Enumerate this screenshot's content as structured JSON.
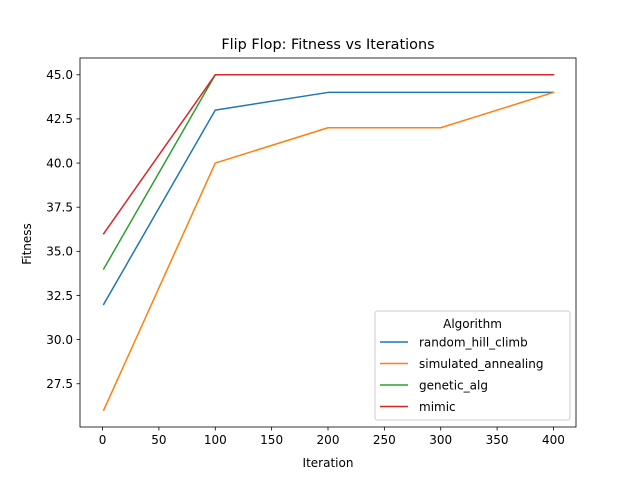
{
  "chart_data": {
    "type": "line",
    "title": "Flip Flop: Fitness vs Iterations",
    "xlabel": "Iteration",
    "ylabel": "Fitness",
    "xlim": [
      -20,
      420
    ],
    "ylim": [
      25.05,
      45.95
    ],
    "xticks": [
      0,
      50,
      100,
      150,
      200,
      250,
      300,
      350,
      400
    ],
    "yticks": [
      27.5,
      30.0,
      32.5,
      35.0,
      37.5,
      40.0,
      42.5,
      45.0
    ],
    "x": [
      1,
      100,
      200,
      300,
      400
    ],
    "series": [
      {
        "name": "random_hill_climb",
        "color": "#1f77b4",
        "values": [
          32,
          43,
          44,
          44,
          44
        ]
      },
      {
        "name": "simulated_annealing",
        "color": "#ff7f0e",
        "values": [
          26,
          40,
          42,
          42,
          44
        ]
      },
      {
        "name": "genetic_alg",
        "color": "#2ca02c",
        "values": [
          34,
          45,
          45,
          45,
          45
        ]
      },
      {
        "name": "mimic",
        "color": "#d62728",
        "values": [
          36,
          45,
          45,
          45,
          45
        ]
      }
    ],
    "grid": false,
    "legend": {
      "title": "Algorithm",
      "placement": "lower right"
    }
  }
}
